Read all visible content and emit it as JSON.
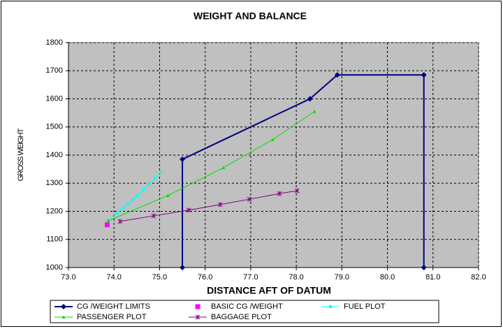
{
  "chart_data": {
    "type": "scatter",
    "title": "WEIGHT AND BALANCE",
    "x_label": "DISTANCE AFT OF DATUM",
    "y_label": "GROSS WEIGHT",
    "xlim": [
      73,
      82
    ],
    "ylim": [
      1000,
      1800
    ],
    "xticks": [
      {
        "value": 73,
        "label": "73.0"
      },
      {
        "value": 74,
        "label": "74.0"
      },
      {
        "value": 75,
        "label": "75.0"
      },
      {
        "value": 76,
        "label": "76.0"
      },
      {
        "value": 77,
        "label": "77.0"
      },
      {
        "value": 78,
        "label": "78.0"
      },
      {
        "value": 79,
        "label": "79.0"
      },
      {
        "value": 80,
        "label": "80.0"
      },
      {
        "value": 81,
        "label": "81.0"
      },
      {
        "value": 82,
        "label": "82.0"
      }
    ],
    "yticks": [
      1000,
      1100,
      1200,
      1300,
      1400,
      1500,
      1600,
      1700,
      1800
    ],
    "grid": true,
    "legend": "bottom",
    "background": "#c0c0c0",
    "series": [
      {
        "name": "CG /WEIGHT LIMITS",
        "color": "#000080",
        "marker": "diamond",
        "line": true,
        "x": [
          75.5,
          75.5,
          78.3,
          78.9,
          80.8,
          80.8
        ],
        "values": [
          1000,
          1385,
          1600,
          1685,
          1685,
          1000
        ]
      },
      {
        "name": "BASIC CG /WEIGHT",
        "color": "#ff00ff",
        "marker": "square",
        "line": false,
        "x": [
          73.85
        ],
        "values": [
          1152
        ]
      },
      {
        "name": "FUEL PLOT",
        "color": "#00ffff",
        "marker": "dot",
        "line": true,
        "x": [
          73.87,
          74.07,
          74.2,
          74.3,
          74.41,
          74.52,
          74.64,
          74.76,
          74.9,
          75.02
        ],
        "values": [
          1166,
          1194,
          1211,
          1226,
          1241,
          1256,
          1276,
          1296,
          1318,
          1338
        ]
      },
      {
        "name": "PASSENGER PLOT",
        "color": "#00dd00",
        "marker": "triangle",
        "line": true,
        "x": [
          73.87,
          75.18,
          76.4,
          77.48,
          78.4
        ],
        "values": [
          1166,
          1256,
          1355,
          1455,
          1555
        ]
      },
      {
        "name": "BAGGAGE PLOT",
        "color": "#800080",
        "marker": "star",
        "line": true,
        "x": [
          74.13,
          74.87,
          75.64,
          76.33,
          76.97,
          77.63,
          78.02
        ],
        "values": [
          1164,
          1184,
          1204,
          1224,
          1243,
          1263,
          1273
        ]
      }
    ]
  }
}
